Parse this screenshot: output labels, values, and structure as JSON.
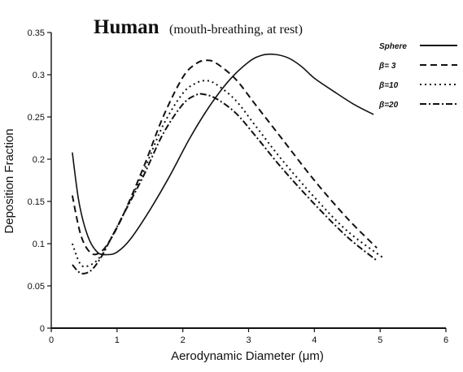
{
  "chart_data": {
    "type": "line",
    "title": "Human",
    "subtitle": "(mouth-breathing, at rest)",
    "xlabel": "Aerodynamic Diameter (μm)",
    "ylabel": "Deposition Fraction",
    "xlim": [
      0,
      6
    ],
    "ylim": [
      0,
      0.35
    ],
    "x_ticks": [
      "0",
      "1",
      "2",
      "3",
      "4",
      "5",
      "6"
    ],
    "y_ticks": [
      "0",
      "0.05",
      "0.1",
      "0.15",
      "0.2",
      "0.25",
      "0.3",
      "0.35"
    ],
    "legend_position": "top-right",
    "grid": false,
    "series": [
      {
        "name": "Sphere",
        "dash": "solid",
        "x": [
          0.32,
          0.42,
          0.55,
          0.7,
          0.85,
          1.0,
          1.2,
          1.5,
          1.8,
          2.1,
          2.4,
          2.7,
          3.0,
          3.2,
          3.4,
          3.6,
          3.8,
          4.0,
          4.3,
          4.6,
          4.9
        ],
        "y": [
          0.208,
          0.15,
          0.11,
          0.09,
          0.087,
          0.09,
          0.105,
          0.14,
          0.18,
          0.224,
          0.262,
          0.293,
          0.315,
          0.323,
          0.324,
          0.32,
          0.31,
          0.296,
          0.28,
          0.265,
          0.253
        ]
      },
      {
        "name": "β= 3",
        "dash": "dashed",
        "x": [
          0.32,
          0.45,
          0.6,
          0.75,
          0.9,
          1.1,
          1.4,
          1.7,
          2.0,
          2.2,
          2.35,
          2.5,
          2.8,
          3.1,
          3.5,
          4.0,
          4.5,
          4.95
        ],
        "y": [
          0.157,
          0.11,
          0.089,
          0.09,
          0.105,
          0.135,
          0.19,
          0.25,
          0.297,
          0.313,
          0.317,
          0.314,
          0.295,
          0.265,
          0.225,
          0.175,
          0.13,
          0.095
        ]
      },
      {
        "name": "β=10",
        "dash": "dotted",
        "x": [
          0.32,
          0.45,
          0.6,
          0.75,
          0.9,
          1.1,
          1.4,
          1.7,
          2.0,
          2.2,
          2.35,
          2.5,
          2.8,
          3.1,
          3.5,
          4.0,
          4.5,
          5.05
        ],
        "y": [
          0.1,
          0.075,
          0.075,
          0.085,
          0.105,
          0.135,
          0.185,
          0.24,
          0.278,
          0.29,
          0.293,
          0.289,
          0.27,
          0.24,
          0.2,
          0.155,
          0.115,
          0.083
        ]
      },
      {
        "name": "β=20",
        "dash": "dashdot",
        "x": [
          0.32,
          0.45,
          0.6,
          0.75,
          0.9,
          1.1,
          1.4,
          1.7,
          2.0,
          2.2,
          2.3,
          2.5,
          2.8,
          3.1,
          3.5,
          4.0,
          4.5,
          4.95
        ],
        "y": [
          0.075,
          0.065,
          0.068,
          0.083,
          0.105,
          0.135,
          0.18,
          0.23,
          0.265,
          0.276,
          0.277,
          0.272,
          0.255,
          0.228,
          0.19,
          0.147,
          0.108,
          0.08
        ]
      }
    ]
  }
}
